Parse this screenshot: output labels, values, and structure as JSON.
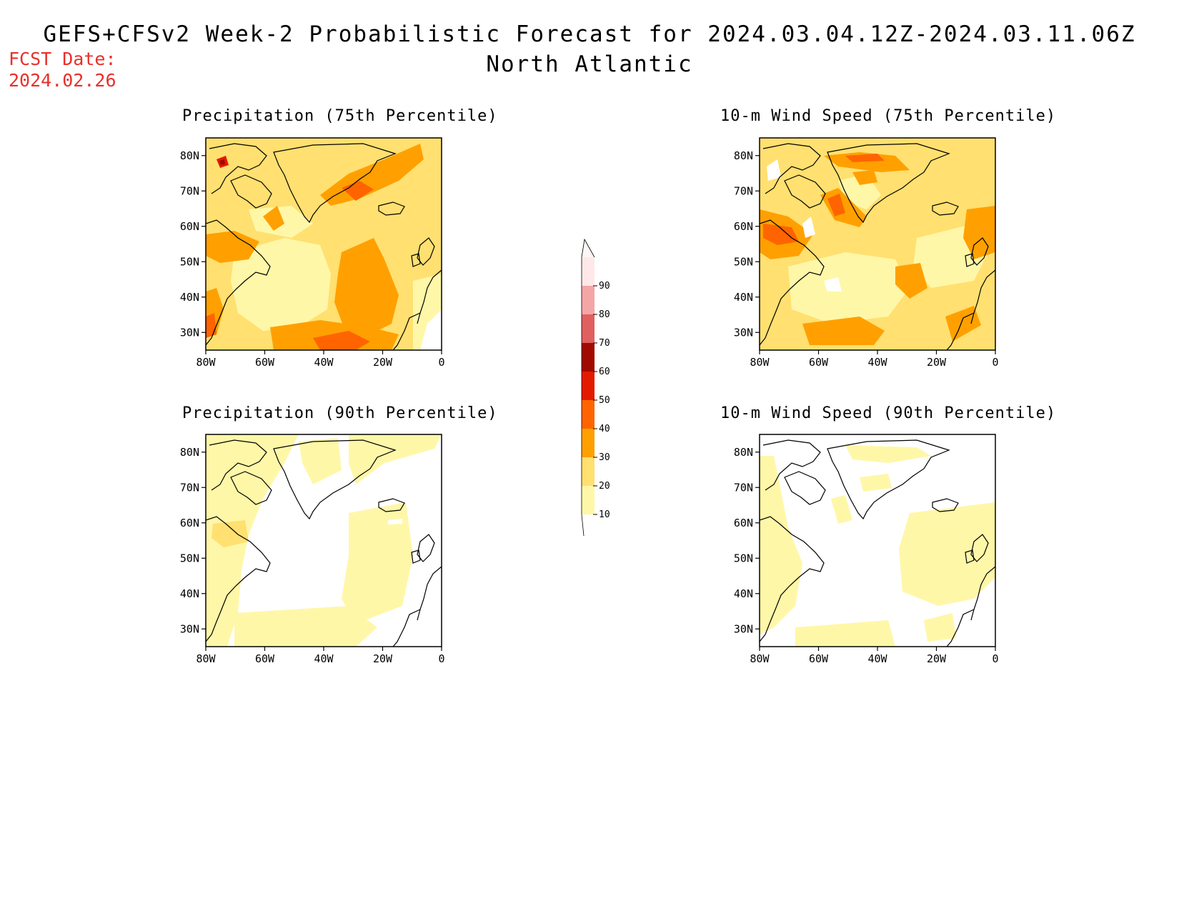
{
  "header": {
    "title_line1": "GEFS+CFSv2 Week-2 Probabilistic Forecast for 2024.03.04.12Z-2024.03.11.06Z",
    "title_line2": "North Atlantic",
    "fcst_label": "FCST Date:",
    "fcst_date": "2024.02.26"
  },
  "panels": [
    {
      "id": "precip75",
      "title": "Precipitation (75th Percentile)"
    },
    {
      "id": "wind75",
      "title": "10-m Wind Speed (75th Percentile)"
    },
    {
      "id": "precip90",
      "title": "Precipitation (90th Percentile)"
    },
    {
      "id": "wind90",
      "title": "10-m Wind Speed (90th Percentile)"
    }
  ],
  "axes": {
    "lat_labels": [
      "80N",
      "70N",
      "60N",
      "50N",
      "40N",
      "30N"
    ],
    "lon_labels": [
      "80W",
      "60W",
      "40W",
      "20W",
      "0"
    ]
  },
  "colorbar": {
    "labels": [
      "10",
      "20",
      "30",
      "40",
      "50",
      "60",
      "70",
      "80",
      "90"
    ],
    "colors": [
      "#fff7a8",
      "#ffe070",
      "#ffa000",
      "#ff6400",
      "#e41a00",
      "#a00a00",
      "#e06060",
      "#f4a6a6",
      "#ffe8e8"
    ]
  },
  "colors": {
    "fcst_text": "#e8302a"
  }
}
